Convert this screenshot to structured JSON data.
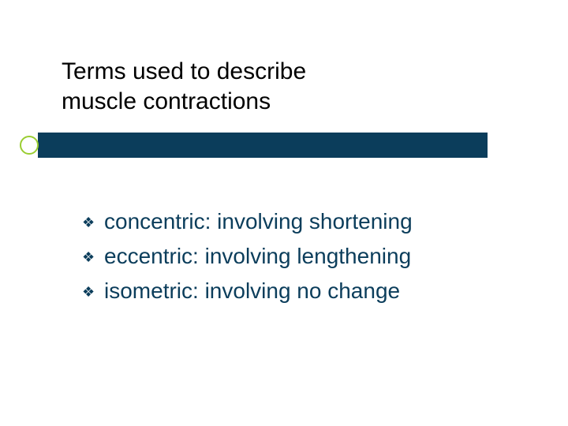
{
  "slide": {
    "title_line1": "Terms used to describe",
    "title_line2": "muscle contractions",
    "title_color": "#000000",
    "title_fontsize": 30,
    "accent_bar_color": "#0b3d5b",
    "accent_dot_border_color": "#9acd32",
    "background_color": "#ffffff",
    "bullet_glyph": "❖",
    "bullet_color": "#0b3d5b",
    "text_color": "#0b3d5b",
    "item_fontsize": 28,
    "items": [
      {
        "term": "concentric",
        "desc": ": involving shortening"
      },
      {
        "term": "eccentric",
        "desc": ": involving lengthening"
      },
      {
        "term": "isometric",
        "desc": ": involving no change"
      }
    ]
  }
}
